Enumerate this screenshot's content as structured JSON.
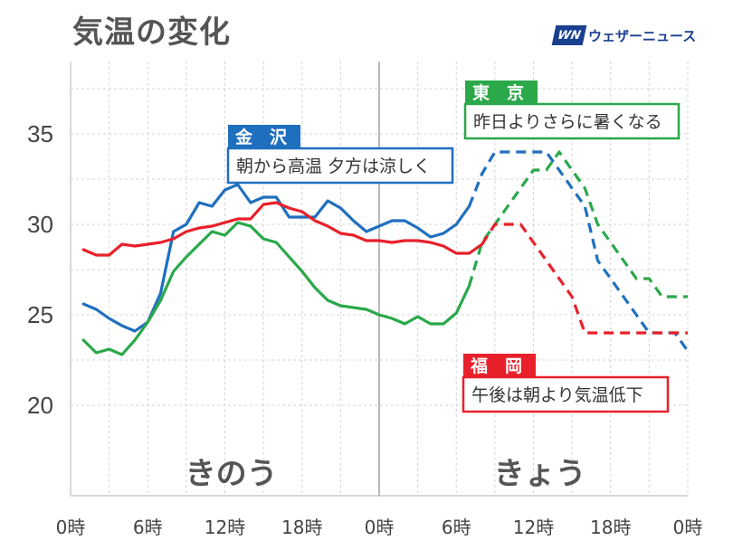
{
  "title": "気温の変化",
  "brand": {
    "mark": "WN",
    "name": "ウェザーニュース"
  },
  "chart_data": {
    "type": "line",
    "title": "気温の変化",
    "ylim": [
      15,
      39
    ],
    "yticks": [
      20,
      25,
      30,
      35
    ],
    "xlim": [
      0,
      48
    ],
    "x_tick_labels": [
      {
        "x": 0,
        "label": "0時"
      },
      {
        "x": 6,
        "label": "6時"
      },
      {
        "x": 12,
        "label": "12時"
      },
      {
        "x": 18,
        "label": "18時"
      },
      {
        "x": 24,
        "label": "0時"
      },
      {
        "x": 30,
        "label": "6時"
      },
      {
        "x": 36,
        "label": "12時"
      },
      {
        "x": 42,
        "label": "18時"
      },
      {
        "x": 48,
        "label": "0時"
      }
    ],
    "grid": true,
    "day_labels": [
      {
        "text": "きのう",
        "x": 12.5
      },
      {
        "text": "きょう",
        "x": 36.5
      }
    ],
    "series": [
      {
        "name": "金　沢",
        "note": "朝から高温 夕方は涼しく",
        "color": "#1f6fbf",
        "observed": [
          [
            1,
            25.6
          ],
          [
            2,
            25.3
          ],
          [
            3,
            24.8
          ],
          [
            4,
            24.4
          ],
          [
            5,
            24.1
          ],
          [
            6,
            24.6
          ],
          [
            7,
            26.2
          ],
          [
            8,
            29.6
          ],
          [
            9,
            30.0
          ],
          [
            10,
            31.2
          ],
          [
            11,
            31.0
          ],
          [
            12,
            31.9
          ],
          [
            13,
            32.2
          ],
          [
            14,
            31.2
          ],
          [
            15,
            31.5
          ],
          [
            16,
            31.5
          ],
          [
            17,
            30.4
          ],
          [
            18,
            30.4
          ],
          [
            19,
            30.4
          ],
          [
            20,
            31.3
          ],
          [
            21,
            30.9
          ],
          [
            22,
            30.2
          ],
          [
            23,
            29.6
          ],
          [
            24,
            29.9
          ],
          [
            25,
            30.2
          ],
          [
            26,
            30.2
          ],
          [
            27,
            29.8
          ],
          [
            28,
            29.3
          ],
          [
            29,
            29.5
          ],
          [
            30,
            30.0
          ],
          [
            31,
            31.0
          ]
        ],
        "forecast": [
          [
            31,
            31.0
          ],
          [
            32,
            32.8
          ],
          [
            33,
            34.0
          ],
          [
            34,
            34.0
          ],
          [
            35,
            34.0
          ],
          [
            36,
            34.0
          ],
          [
            37,
            34.0
          ],
          [
            38,
            33.0
          ],
          [
            39,
            32.0
          ],
          [
            40,
            31.0
          ],
          [
            41,
            28.0
          ],
          [
            42,
            27.0
          ],
          [
            43,
            26.0
          ],
          [
            44,
            25.0
          ],
          [
            45,
            24.0
          ],
          [
            46,
            24.0
          ],
          [
            47,
            24.0
          ],
          [
            48,
            23.0
          ]
        ]
      },
      {
        "name": "東　京",
        "note": "昨日よりさらに暑くなる",
        "color": "#2aa84a",
        "observed": [
          [
            1,
            23.6
          ],
          [
            2,
            22.9
          ],
          [
            3,
            23.1
          ],
          [
            4,
            22.8
          ],
          [
            5,
            23.6
          ],
          [
            6,
            24.6
          ],
          [
            7,
            25.8
          ],
          [
            8,
            27.4
          ],
          [
            9,
            28.2
          ],
          [
            10,
            28.9
          ],
          [
            11,
            29.6
          ],
          [
            12,
            29.4
          ],
          [
            13,
            30.1
          ],
          [
            14,
            29.9
          ],
          [
            15,
            29.2
          ],
          [
            16,
            29.0
          ],
          [
            17,
            28.2
          ],
          [
            18,
            27.4
          ],
          [
            19,
            26.5
          ],
          [
            20,
            25.8
          ],
          [
            21,
            25.5
          ],
          [
            22,
            25.4
          ],
          [
            23,
            25.3
          ],
          [
            24,
            25.0
          ],
          [
            25,
            24.8
          ],
          [
            26,
            24.5
          ],
          [
            27,
            24.9
          ],
          [
            28,
            24.5
          ],
          [
            29,
            24.5
          ],
          [
            30,
            25.1
          ],
          [
            31,
            26.6
          ]
        ],
        "forecast": [
          [
            31,
            26.6
          ],
          [
            32,
            29.0
          ],
          [
            33,
            30.0
          ],
          [
            34,
            31.0
          ],
          [
            35,
            32.0
          ],
          [
            36,
            33.0
          ],
          [
            37,
            33.0
          ],
          [
            38,
            34.0
          ],
          [
            39,
            33.0
          ],
          [
            40,
            32.0
          ],
          [
            41,
            30.0
          ],
          [
            42,
            29.0
          ],
          [
            43,
            28.0
          ],
          [
            44,
            27.0
          ],
          [
            45,
            27.0
          ],
          [
            46,
            26.0
          ],
          [
            47,
            26.0
          ],
          [
            48,
            26.0
          ]
        ]
      },
      {
        "name": "福　岡",
        "note": "午後は朝より気温低下",
        "color": "#e8202a",
        "observed": [
          [
            1,
            28.6
          ],
          [
            2,
            28.3
          ],
          [
            3,
            28.3
          ],
          [
            4,
            28.9
          ],
          [
            5,
            28.8
          ],
          [
            6,
            28.9
          ],
          [
            7,
            29.0
          ],
          [
            8,
            29.2
          ],
          [
            9,
            29.6
          ],
          [
            10,
            29.8
          ],
          [
            11,
            29.9
          ],
          [
            12,
            30.1
          ],
          [
            13,
            30.3
          ],
          [
            14,
            30.3
          ],
          [
            15,
            31.1
          ],
          [
            16,
            31.2
          ],
          [
            17,
            30.9
          ],
          [
            18,
            30.7
          ],
          [
            19,
            30.2
          ],
          [
            20,
            29.9
          ],
          [
            21,
            29.5
          ],
          [
            22,
            29.4
          ],
          [
            23,
            29.1
          ],
          [
            24,
            29.1
          ],
          [
            25,
            29.0
          ],
          [
            26,
            29.1
          ],
          [
            27,
            29.1
          ],
          [
            28,
            29.0
          ],
          [
            29,
            28.8
          ],
          [
            30,
            28.4
          ],
          [
            31,
            28.4
          ],
          [
            32,
            28.9
          ]
        ],
        "forecast": [
          [
            32,
            28.9
          ],
          [
            33,
            30.0
          ],
          [
            34,
            30.0
          ],
          [
            35,
            30.0
          ],
          [
            36,
            29.0
          ],
          [
            37,
            28.0
          ],
          [
            38,
            27.0
          ],
          [
            39,
            26.0
          ],
          [
            40,
            24.0
          ],
          [
            41,
            24.0
          ],
          [
            42,
            24.0
          ],
          [
            43,
            24.0
          ],
          [
            44,
            24.0
          ],
          [
            45,
            24.0
          ],
          [
            46,
            24.0
          ],
          [
            47,
            24.0
          ],
          [
            48,
            24.0
          ]
        ]
      }
    ]
  }
}
